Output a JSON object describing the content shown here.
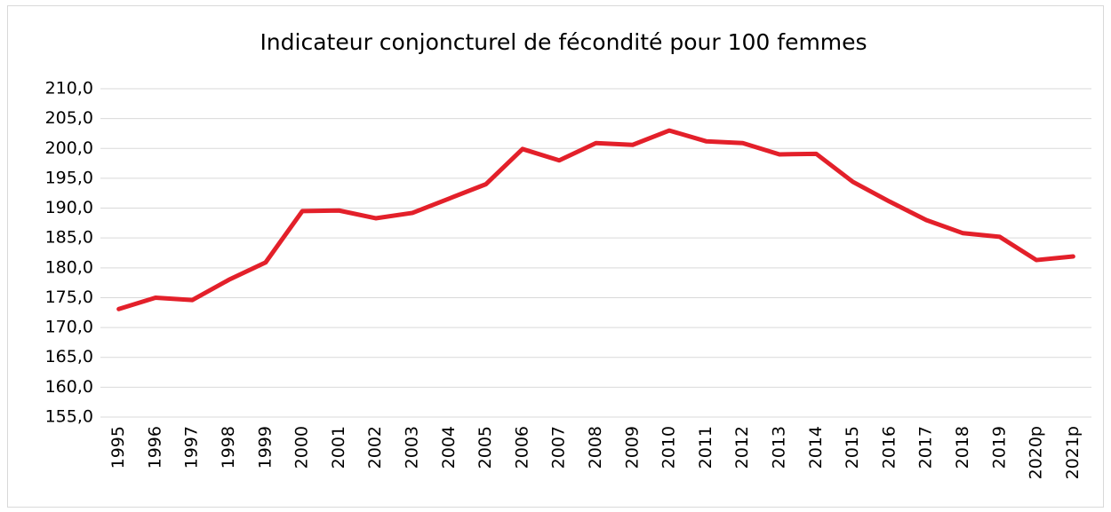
{
  "chart_data": {
    "type": "line",
    "title": "Indicateur conjoncturel de fécondité pour 100 femmes",
    "categories": [
      "1995",
      "1996",
      "1997",
      "1998",
      "1999",
      "2000",
      "2001",
      "2002",
      "2003",
      "2004",
      "2005",
      "2006",
      "2007",
      "2008",
      "2009",
      "2010",
      "2011",
      "2012",
      "2013",
      "2014",
      "2015",
      "2016",
      "2017",
      "2018",
      "2019",
      "2020p",
      "2021p"
    ],
    "series": [
      {
        "color": "#e3202a",
        "values": [
          173.1,
          175.0,
          174.6,
          178.0,
          180.9,
          189.5,
          189.6,
          188.3,
          189.2,
          191.6,
          194.0,
          199.9,
          198.0,
          200.9,
          200.6,
          203.0,
          201.2,
          200.9,
          199.0,
          199.1,
          194.4,
          191.1,
          188.0,
          185.8,
          185.2,
          181.3,
          181.9
        ]
      }
    ],
    "ylim": [
      155,
      210
    ],
    "yticks": [
      {
        "value": 155,
        "label": "155,0"
      },
      {
        "value": 160,
        "label": "160,0"
      },
      {
        "value": 165,
        "label": "165,0"
      },
      {
        "value": 170,
        "label": "170,0"
      },
      {
        "value": 175,
        "label": "175,0"
      },
      {
        "value": 180,
        "label": "180,0"
      },
      {
        "value": 185,
        "label": "185,0"
      },
      {
        "value": 190,
        "label": "190,0"
      },
      {
        "value": 195,
        "label": "195,0"
      },
      {
        "value": 200,
        "label": "200,0"
      },
      {
        "value": 205,
        "label": "205,0"
      },
      {
        "value": 210,
        "label": "210,0"
      }
    ],
    "grid": true
  }
}
